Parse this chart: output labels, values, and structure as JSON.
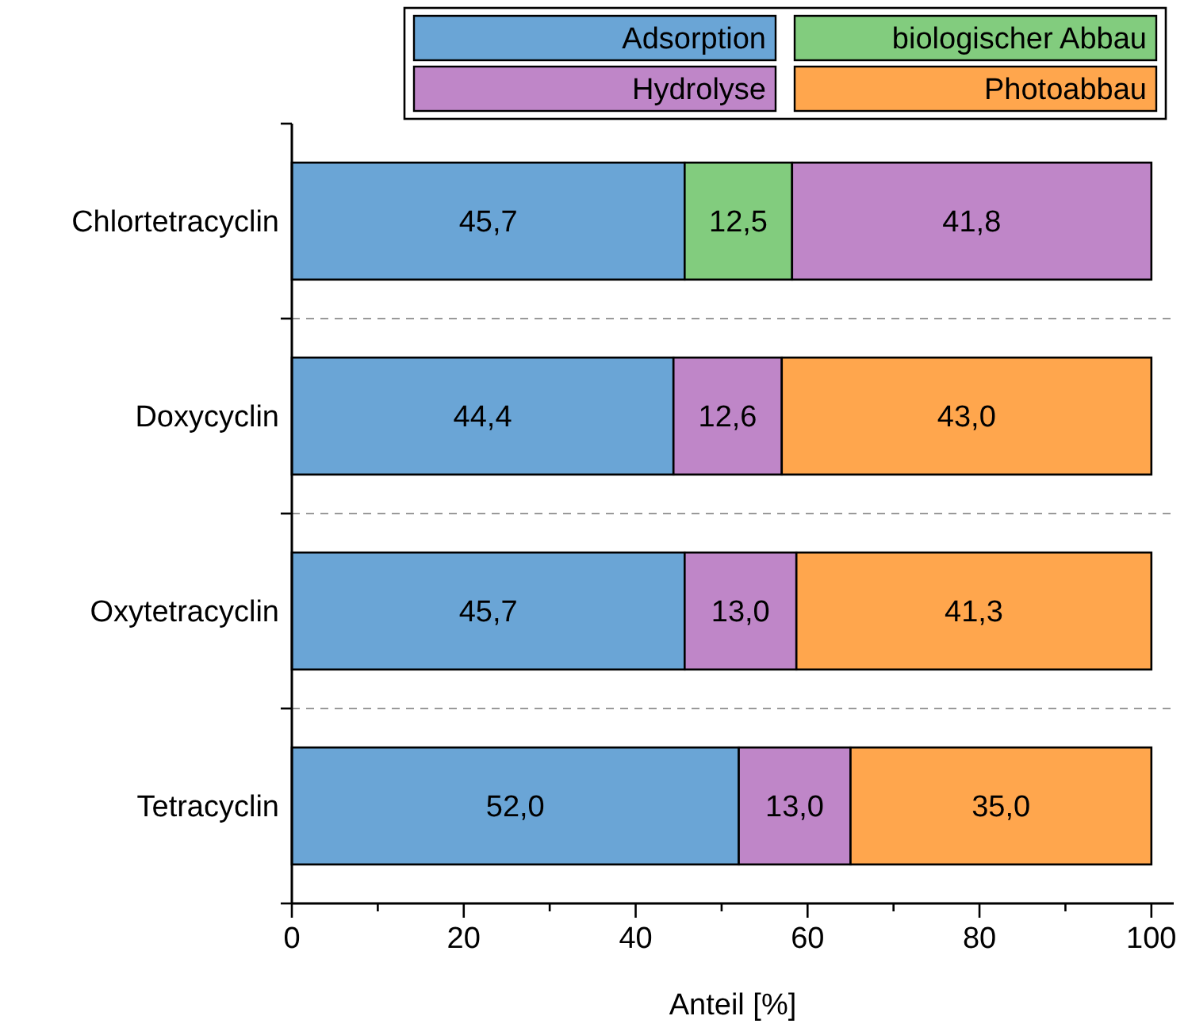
{
  "chart_data": {
    "type": "bar",
    "orientation": "horizontal",
    "stacked": true,
    "xlabel": "Anteil [%]",
    "categories": [
      "Chlortetracyclin",
      "Doxycyclin",
      "Oxytetracyclin",
      "Tetracyclin"
    ],
    "series": [
      {
        "name": "Adsorption",
        "color": "#6aa5d6",
        "values": [
          45.7,
          44.4,
          45.7,
          52.0
        ],
        "value_labels": [
          "45,7",
          "44,4",
          "45,7",
          "52,0"
        ]
      },
      {
        "name": "biologischer Abbau",
        "color": "#82cc7e",
        "values": [
          12.5,
          null,
          null,
          null
        ],
        "value_labels": [
          "12,5",
          null,
          null,
          null
        ]
      },
      {
        "name": "Hydrolyse",
        "color": "#bf86c8",
        "values": [
          41.8,
          12.6,
          13.0,
          13.0
        ],
        "value_labels": [
          "41,8",
          "12,6",
          "13,0",
          "13,0"
        ]
      },
      {
        "name": "Photoabbau",
        "color": "#ffa64d",
        "values": [
          null,
          43.0,
          41.3,
          35.0
        ],
        "value_labels": [
          null,
          "43,0",
          "41,3",
          "35,0"
        ]
      }
    ],
    "xlim": [
      0,
      102.6
    ],
    "xticks": [
      0,
      {
        "value": 10,
        "label": null
      },
      20,
      {
        "value": 30,
        "label": null
      },
      40,
      {
        "value": 50,
        "label": null
      },
      60,
      {
        "value": 70,
        "label": null
      },
      80,
      {
        "value": 90,
        "label": null
      },
      100
    ],
    "grid": "y",
    "legend": "top right"
  }
}
